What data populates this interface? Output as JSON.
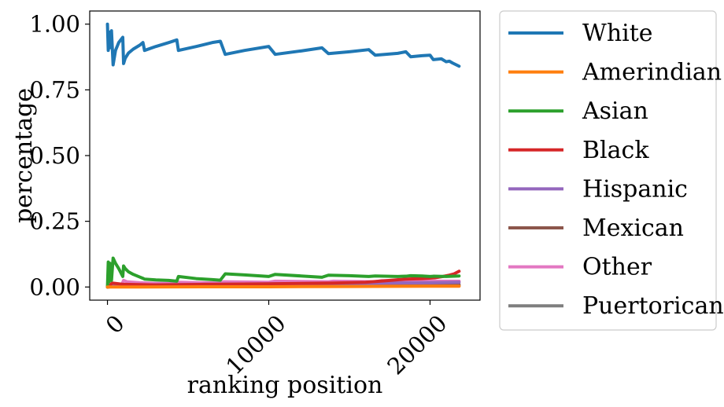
{
  "chart_data": {
    "type": "line",
    "title": "",
    "xlabel": "ranking position",
    "ylabel": "percentage",
    "xlim": [
      -1100,
      23100
    ],
    "ylim": [
      -0.05,
      1.05
    ],
    "xticks": [
      0,
      10000,
      20000
    ],
    "xtick_labels": [
      "0",
      "10000",
      "20000"
    ],
    "yticks": [
      0.0,
      0.25,
      0.5,
      0.75,
      1.0
    ],
    "ytick_labels": [
      "0.00",
      "0.25",
      "0.50",
      "0.75",
      "1.00"
    ],
    "grid": false,
    "legend_position": "outside-right",
    "series": [
      {
        "name": "White",
        "color": "#1f77b4",
        "x": [
          0,
          50,
          100,
          150,
          250,
          350,
          500,
          700,
          950,
          1000,
          1100,
          1300,
          1600,
          2000,
          2200,
          2300,
          3000,
          3800,
          4300,
          4400,
          5500,
          6500,
          7000,
          7300,
          8500,
          10000,
          10400,
          12000,
          13300,
          13700,
          15000,
          16200,
          16600,
          18000,
          18500,
          18800,
          19500,
          20000,
          20200,
          20700,
          21000,
          21200,
          21400,
          21800
        ],
        "y": [
          1.0,
          0.9,
          0.97,
          0.91,
          0.975,
          0.845,
          0.9,
          0.93,
          0.95,
          0.85,
          0.87,
          0.89,
          0.905,
          0.92,
          0.93,
          0.9,
          0.915,
          0.93,
          0.94,
          0.9,
          0.915,
          0.93,
          0.935,
          0.885,
          0.9,
          0.915,
          0.885,
          0.898,
          0.91,
          0.888,
          0.895,
          0.903,
          0.882,
          0.889,
          0.895,
          0.876,
          0.88,
          0.882,
          0.865,
          0.868,
          0.857,
          0.859,
          0.852,
          0.84
        ]
      },
      {
        "name": "Amerindian",
        "color": "#ff7f0e",
        "x": [
          0,
          2000,
          6000,
          10000,
          15000,
          20000,
          21800
        ],
        "y": [
          0.0,
          0.0,
          0.001,
          0.001,
          0.002,
          0.003,
          0.003
        ]
      },
      {
        "name": "Asian",
        "color": "#2ca02c",
        "x": [
          0,
          50,
          100,
          150,
          250,
          350,
          500,
          700,
          950,
          1000,
          1100,
          1300,
          1600,
          2000,
          2200,
          2300,
          3000,
          3800,
          4300,
          4400,
          5500,
          6500,
          7000,
          7300,
          8500,
          10000,
          10400,
          12000,
          13300,
          13700,
          15000,
          16200,
          16600,
          18000,
          18500,
          18800,
          19500,
          20000,
          20200,
          21000,
          21800
        ],
        "y": [
          0.0,
          0.095,
          0.02,
          0.09,
          0.025,
          0.11,
          0.09,
          0.07,
          0.04,
          0.08,
          0.07,
          0.058,
          0.048,
          0.038,
          0.033,
          0.03,
          0.027,
          0.025,
          0.022,
          0.04,
          0.032,
          0.028,
          0.026,
          0.05,
          0.046,
          0.04,
          0.048,
          0.042,
          0.037,
          0.045,
          0.043,
          0.04,
          0.042,
          0.04,
          0.041,
          0.043,
          0.042,
          0.04,
          0.041,
          0.04,
          0.042
        ]
      },
      {
        "name": "Black",
        "color": "#d62728",
        "x": [
          0,
          300,
          1000,
          3000,
          6000,
          10000,
          14000,
          16000,
          17500,
          18500,
          19500,
          20300,
          20800,
          21200,
          21500,
          21800
        ],
        "y": [
          0.0,
          0.015,
          0.01,
          0.008,
          0.01,
          0.012,
          0.015,
          0.018,
          0.025,
          0.03,
          0.032,
          0.035,
          0.04,
          0.045,
          0.05,
          0.06
        ]
      },
      {
        "name": "Hispanic",
        "color": "#9467bd",
        "x": [
          0,
          500,
          2000,
          6000,
          10000,
          15000,
          20000,
          21800
        ],
        "y": [
          0.0,
          0.01,
          0.008,
          0.01,
          0.012,
          0.014,
          0.016,
          0.018
        ]
      },
      {
        "name": "Mexican",
        "color": "#8c564b",
        "x": [
          0,
          1000,
          5000,
          10000,
          15000,
          20000,
          21800
        ],
        "y": [
          0.0,
          0.004,
          0.005,
          0.006,
          0.007,
          0.008,
          0.009
        ]
      },
      {
        "name": "Other",
        "color": "#e377c2",
        "x": [
          0,
          900,
          1000,
          1200,
          2000,
          3000,
          4300,
          4400,
          6000,
          7000,
          7200,
          10000,
          10400,
          13700,
          14000,
          16600,
          17000,
          20000,
          21800
        ],
        "y": [
          0.0,
          0.01,
          0.025,
          0.02,
          0.016,
          0.014,
          0.013,
          0.018,
          0.016,
          0.015,
          0.02,
          0.018,
          0.022,
          0.02,
          0.022,
          0.02,
          0.024,
          0.022,
          0.022
        ]
      },
      {
        "name": "Puertorican",
        "color": "#7f7f7f",
        "x": [
          0,
          1000,
          5000,
          10000,
          15000,
          20000,
          21800
        ],
        "y": [
          0.0,
          0.005,
          0.004,
          0.004,
          0.004,
          0.004,
          0.004
        ]
      }
    ]
  }
}
